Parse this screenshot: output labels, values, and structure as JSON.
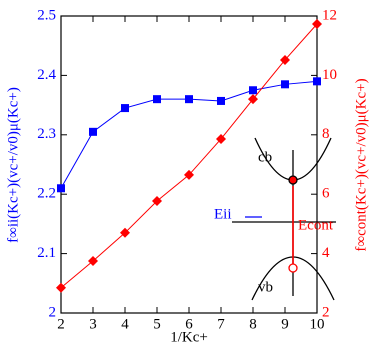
{
  "chart_data": {
    "type": "line",
    "x": [
      2,
      3,
      4,
      5,
      6,
      7,
      8,
      9,
      10
    ],
    "xlim": [
      2,
      10
    ],
    "xticks": [
      2,
      3,
      4,
      5,
      6,
      7,
      8,
      9,
      10
    ],
    "xlabel": "1/Kc+",
    "ylabel": "f∞ii(Kc+)(vc+/v0)μ(Kc+)",
    "y2label": "f∞cont(Kc+)(vc+/v0)μ(Kc+)",
    "ylim": [
      2,
      2.5
    ],
    "yticks": [
      2,
      2.1,
      2.2,
      2.3,
      2.4,
      2.5
    ],
    "y2lim": [
      2,
      12
    ],
    "y2ticks": [
      2,
      4,
      6,
      8,
      10,
      12
    ],
    "series": [
      {
        "name": "Eii",
        "color": "#0000ff",
        "marker": "square",
        "values": [
          2.21,
          2.305,
          2.345,
          2.36,
          2.36,
          2.357,
          2.375,
          2.385,
          2.39
        ]
      },
      {
        "name": "Econt",
        "color": "#ff0000",
        "marker": "diamond",
        "axis": "y2",
        "values": [
          2.85,
          3.75,
          4.7,
          5.77,
          6.65,
          7.86,
          9.2,
          10.52,
          11.73
        ]
      }
    ],
    "annotations": [
      "cb",
      "vb"
    ]
  }
}
